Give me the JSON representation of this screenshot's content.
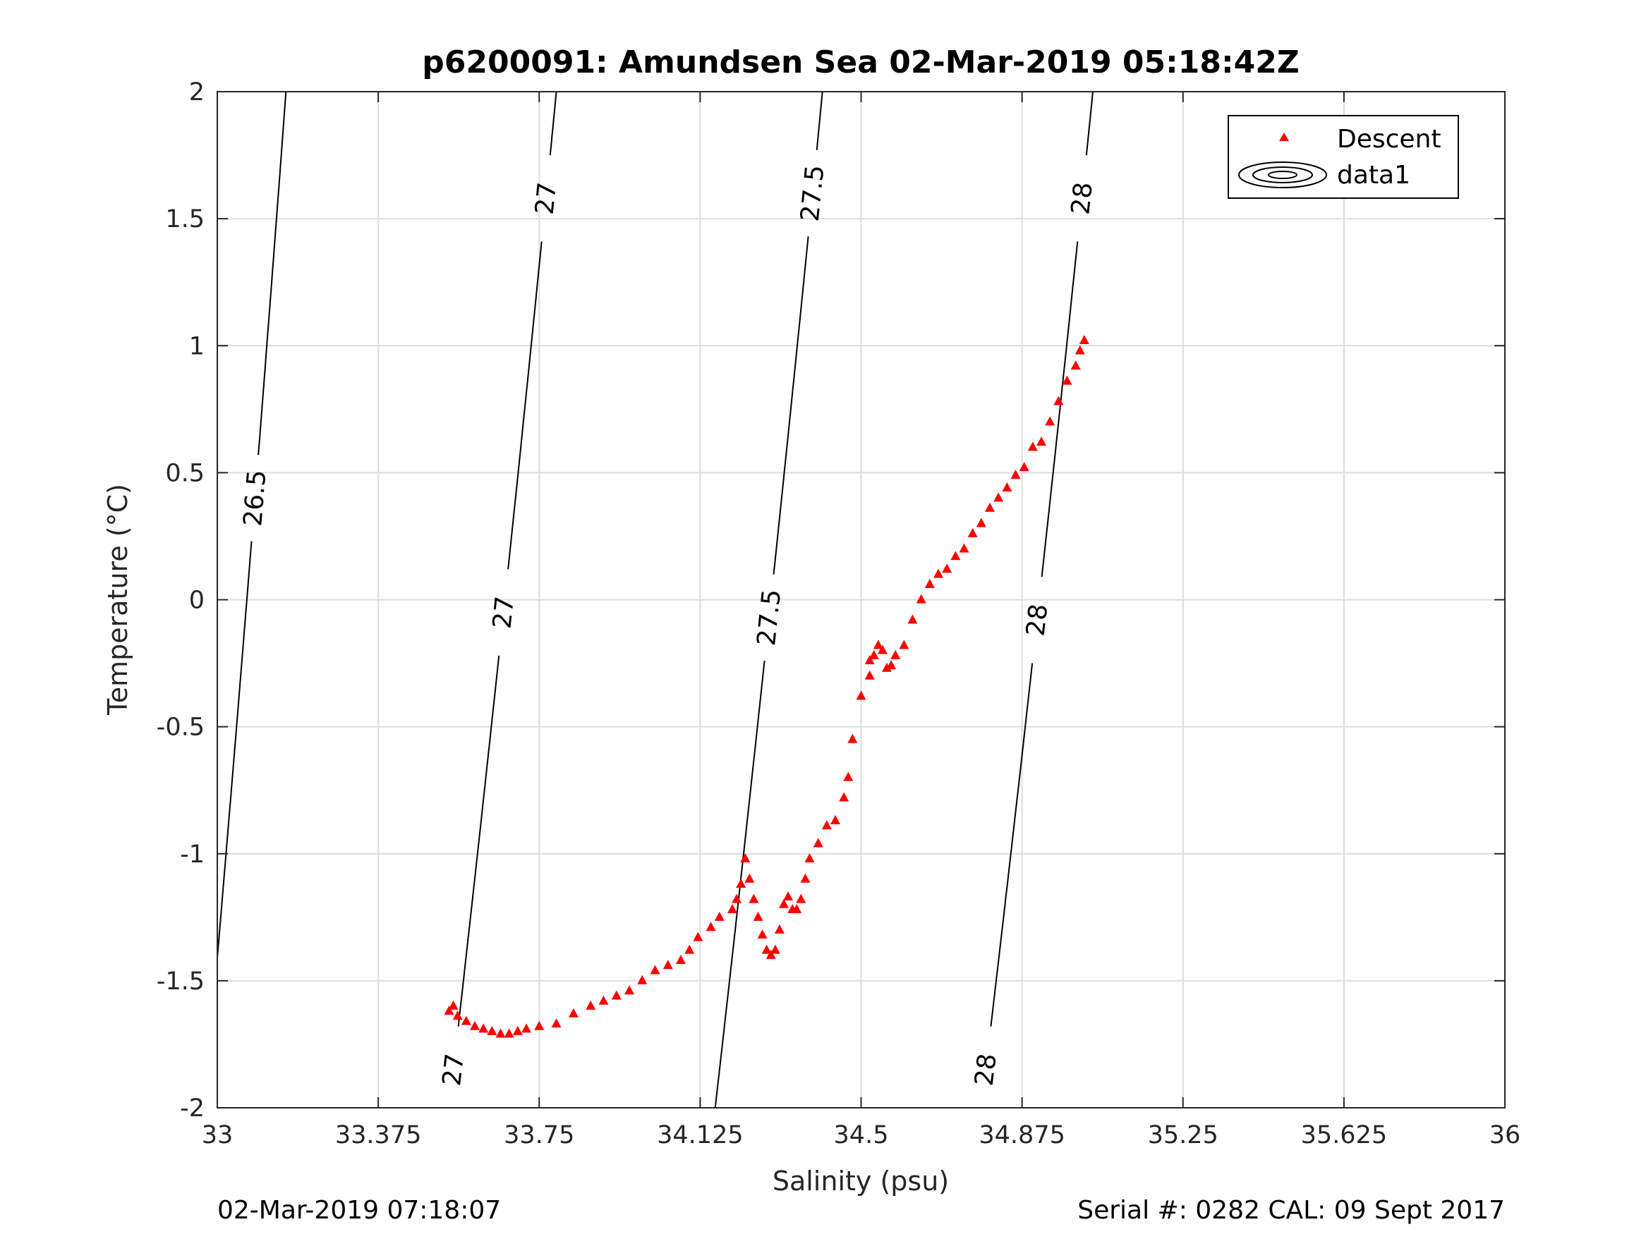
{
  "chart_data": {
    "type": "scatter",
    "title": "p6200091: Amundsen Sea 02-Mar-2019 05:18:42Z",
    "xlabel": "Salinity (psu)",
    "ylabel": "Temperature (°C)",
    "xlim": [
      33,
      36
    ],
    "ylim": [
      -2,
      2
    ],
    "x_ticks": [
      33,
      33.375,
      33.75,
      34.125,
      34.5,
      34.875,
      35.25,
      35.625,
      36
    ],
    "x_tick_labels": [
      "33",
      "33.375",
      "33.75",
      "34.125",
      "34.5",
      "34.875",
      "35.25",
      "35.625",
      "36"
    ],
    "y_ticks": [
      2,
      1.5,
      1,
      0.5,
      0,
      -0.5,
      -1,
      -1.5,
      -2
    ],
    "y_tick_labels": [
      "2",
      "1.5",
      "1",
      "0.5",
      "0",
      "-0.5",
      "-1",
      "-1.5",
      "-2"
    ],
    "grid": true,
    "legend": {
      "placement": "top-right",
      "entries": [
        {
          "label": "Descent",
          "marker": "triangle",
          "color": "#ff0000"
        },
        {
          "label": "data1",
          "marker": "contour",
          "color": "#000000"
        }
      ]
    },
    "series": [
      {
        "name": "Descent",
        "marker": "triangle",
        "color": "#ff0000",
        "x": [
          33.54,
          33.55,
          33.56,
          33.58,
          33.6,
          33.62,
          33.64,
          33.66,
          33.68,
          33.7,
          33.72,
          33.75,
          33.79,
          33.83,
          33.87,
          33.9,
          33.93,
          33.96,
          33.99,
          34.02,
          34.05,
          34.08,
          34.1,
          34.12,
          34.15,
          34.17,
          34.2,
          34.21,
          34.22,
          34.23,
          34.24,
          34.25,
          34.26,
          34.27,
          34.28,
          34.29,
          34.3,
          34.31,
          34.32,
          34.33,
          34.34,
          34.35,
          34.36,
          34.37,
          34.38,
          34.4,
          34.42,
          34.44,
          34.46,
          34.47,
          34.48,
          34.5,
          34.52,
          34.52,
          34.53,
          34.54,
          34.55,
          34.56,
          34.57,
          34.58,
          34.6,
          34.62,
          34.64,
          34.66,
          34.68,
          34.7,
          34.72,
          34.74,
          34.76,
          34.78,
          34.8,
          34.82,
          34.84,
          34.86,
          34.88,
          34.9,
          34.92,
          34.94,
          34.96,
          34.98,
          35.0,
          35.01,
          35.02
        ],
        "y": [
          -1.62,
          -1.6,
          -1.64,
          -1.66,
          -1.68,
          -1.69,
          -1.7,
          -1.71,
          -1.71,
          -1.7,
          -1.69,
          -1.68,
          -1.67,
          -1.63,
          -1.6,
          -1.58,
          -1.56,
          -1.54,
          -1.5,
          -1.46,
          -1.44,
          -1.42,
          -1.38,
          -1.33,
          -1.29,
          -1.25,
          -1.22,
          -1.18,
          -1.12,
          -1.02,
          -1.1,
          -1.18,
          -1.25,
          -1.32,
          -1.38,
          -1.4,
          -1.38,
          -1.3,
          -1.2,
          -1.17,
          -1.22,
          -1.22,
          -1.18,
          -1.1,
          -1.02,
          -0.96,
          -0.89,
          -0.87,
          -0.78,
          -0.7,
          -0.55,
          -0.38,
          -0.24,
          -0.3,
          -0.22,
          -0.18,
          -0.2,
          -0.27,
          -0.26,
          -0.22,
          -0.18,
          -0.08,
          0.0,
          0.06,
          0.1,
          0.12,
          0.17,
          0.2,
          0.26,
          0.3,
          0.36,
          0.4,
          0.44,
          0.49,
          0.52,
          0.6,
          0.62,
          0.7,
          0.78,
          0.86,
          0.92,
          0.98,
          1.02
        ]
      }
    ],
    "contours": [
      {
        "level": "26.5",
        "x_at_bottom": 32.97,
        "x_at_top": 33.16,
        "labels_y": [
          0.4
        ]
      },
      {
        "level": "27",
        "x_at_bottom": 33.54,
        "x_at_top": 33.79,
        "labels_y": [
          -1.85,
          -0.05,
          1.58
        ]
      },
      {
        "level": "27.5",
        "x_at_bottom": 34.16,
        "x_at_top": 34.41,
        "labels_y": [
          -0.07,
          1.6
        ]
      },
      {
        "level": "28",
        "x_at_bottom": 34.78,
        "x_at_top": 35.04,
        "labels_y": [
          -1.85,
          -0.08,
          1.58
        ]
      }
    ]
  },
  "footer": {
    "left": "02-Mar-2019 07:18:07",
    "right": "Serial #: 0282  CAL: 09 Sept 2017"
  }
}
